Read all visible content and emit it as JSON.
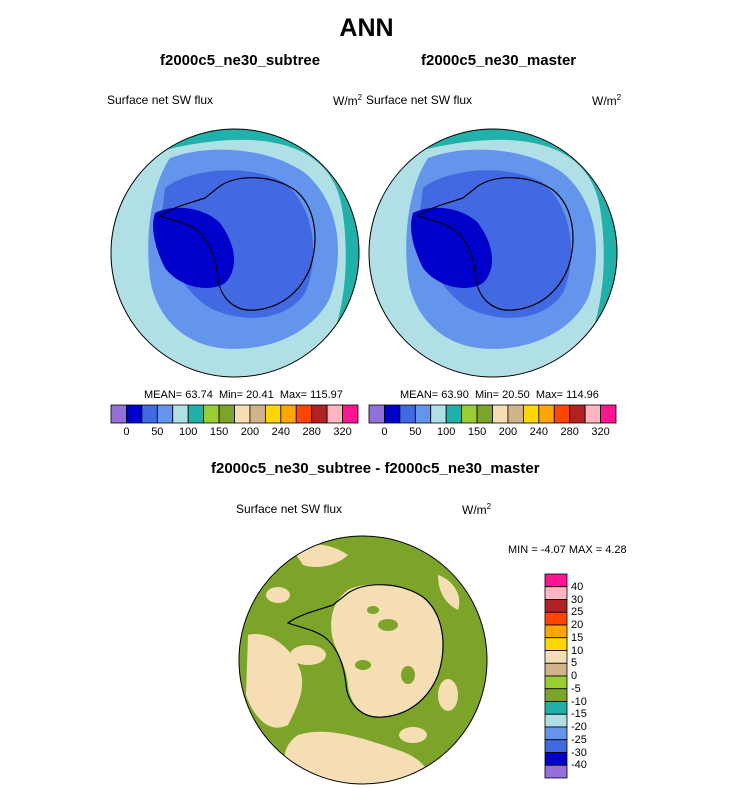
{
  "figure": {
    "title": "ANN"
  },
  "panels": [
    {
      "title": "f2000c5_ne30_subtree",
      "variable": "Surface net SW flux",
      "units_base": "W/m",
      "units_exp": "2",
      "mean_label": "MEAN=",
      "mean": "63.74",
      "min_label": "Min=",
      "min": "20.41",
      "max_label": "Max=",
      "max": "115.97"
    },
    {
      "title": "f2000c5_ne30_master",
      "variable": "Surface net SW flux",
      "units_base": "W/m",
      "units_exp": "2",
      "mean_label": "MEAN=",
      "mean": "63.90",
      "min_label": "Min=",
      "min": "20.50",
      "max_label": "Max=",
      "max": "114.96"
    }
  ],
  "diff": {
    "title": "f2000c5_ne30_subtree - f2000c5_ne30_master",
    "variable": "Surface net SW flux",
    "units_base": "W/m",
    "units_exp": "2",
    "min_label": "MIN =",
    "min": "-4.07",
    "max_label": "MAX =",
    "max": "4.28"
  },
  "colorbar_main": {
    "colors": [
      "#9370db",
      "#0000cd",
      "#4169e1",
      "#6495ed",
      "#b0e0e6",
      "#20b2aa",
      "#9acd32",
      "#7ba428",
      "#f5deb3",
      "#d2b48c",
      "#ffd700",
      "#ffa500",
      "#ff4500",
      "#b22222",
      "#ffb6c1",
      "#ff1493"
    ],
    "tick_labels": [
      "0",
      "50",
      "100",
      "150",
      "200",
      "240",
      "280",
      "320"
    ]
  },
  "colorbar_diff": {
    "colors": [
      "#ff1493",
      "#ffb6c1",
      "#b22222",
      "#ff4500",
      "#ffa500",
      "#ffd700",
      "#f5deb3",
      "#d2b48c",
      "#9acd32",
      "#7ba428",
      "#20b2aa",
      "#b0e0e6",
      "#6495ed",
      "#4169e1",
      "#0000cd",
      "#9370db"
    ],
    "tick_labels": [
      "40",
      "30",
      "25",
      "20",
      "15",
      "10",
      "5",
      "0",
      "-5",
      "-10",
      "-15",
      "-20",
      "-25",
      "-30",
      "-40"
    ]
  }
}
